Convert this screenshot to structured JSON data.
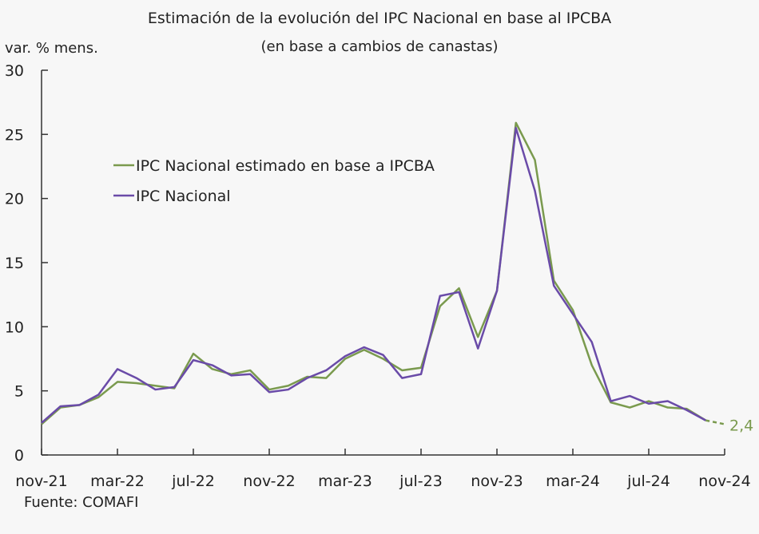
{
  "chart_data": {
    "type": "line",
    "title": "Estimación de la evolución del IPC Nacional en base al IPCBA",
    "subtitle": "(en base a cambios de canastas)",
    "ylabel": "var. % mens.",
    "source": "Fuente: COMAFI",
    "ylim": [
      0,
      30
    ],
    "yticks": [
      0,
      5,
      10,
      15,
      20,
      25,
      30
    ],
    "x": [
      "nov-21",
      "dic-21",
      "ene-22",
      "feb-22",
      "mar-22",
      "abr-22",
      "may-22",
      "jun-22",
      "jul-22",
      "ago-22",
      "sep-22",
      "oct-22",
      "nov-22",
      "dic-22",
      "ene-23",
      "feb-23",
      "mar-23",
      "abr-23",
      "may-23",
      "jun-23",
      "jul-23",
      "ago-23",
      "sep-23",
      "oct-23",
      "nov-23",
      "dic-23",
      "ene-24",
      "feb-24",
      "mar-24",
      "abr-24",
      "may-24",
      "jun-24",
      "jul-24",
      "ago-24",
      "sep-24",
      "oct-24",
      "nov-24"
    ],
    "xtick_labels": [
      "nov-21",
      "mar-22",
      "jul-22",
      "nov-22",
      "mar-23",
      "jul-23",
      "nov-23",
      "mar-24",
      "jul-24",
      "nov-24"
    ],
    "legend_placement": "top-left",
    "series": [
      {
        "name": "IPC Nacional estimado en base a IPCBA",
        "color": "#7a9a4e",
        "values": [
          2.4,
          3.7,
          3.9,
          4.5,
          5.7,
          5.6,
          5.4,
          5.2,
          7.9,
          6.7,
          6.3,
          6.6,
          5.1,
          5.4,
          6.1,
          6.0,
          7.5,
          8.2,
          7.5,
          6.6,
          6.8,
          11.6,
          13.0,
          9.2,
          12.8,
          25.9,
          23.0,
          13.6,
          11.3,
          7.0,
          4.1,
          3.7,
          4.2,
          3.7,
          3.6,
          2.7,
          2.4
        ],
        "dashed_last_segment": true,
        "end_label": "2,4"
      },
      {
        "name": "IPC Nacional",
        "color": "#6a4ba8",
        "values": [
          2.5,
          3.8,
          3.9,
          4.7,
          6.7,
          6.0,
          5.1,
          5.3,
          7.4,
          7.0,
          6.2,
          6.3,
          4.9,
          5.1,
          6.0,
          6.6,
          7.7,
          8.4,
          7.8,
          6.0,
          6.3,
          12.4,
          12.7,
          8.3,
          12.8,
          25.5,
          20.6,
          13.2,
          11.0,
          8.8,
          4.2,
          4.6,
          4.0,
          4.2,
          3.5,
          2.7,
          null
        ]
      }
    ]
  }
}
